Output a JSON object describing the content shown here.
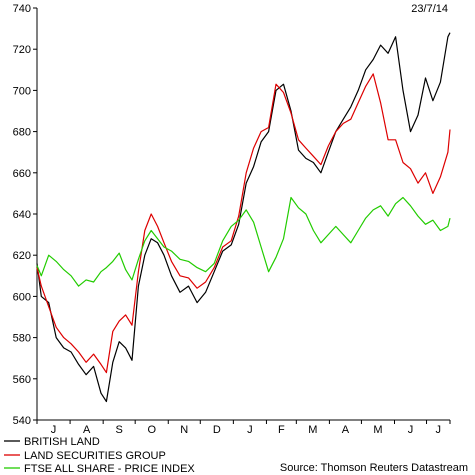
{
  "chart_data": {
    "type": "line",
    "date_label": "23/7/14",
    "source": "Source: Thomson Reuters Datastream",
    "ylim": [
      540,
      740
    ],
    "yticks": [
      540,
      560,
      580,
      600,
      620,
      640,
      660,
      680,
      700,
      720,
      740
    ],
    "xlim": [
      "2013-07-01",
      "2014-07-23"
    ],
    "month_labels": [
      "J",
      "A",
      "S",
      "O",
      "N",
      "D",
      "J",
      "F",
      "M",
      "A",
      "M",
      "J",
      "J"
    ],
    "grid": false,
    "legend_position": "bottom-left",
    "series": [
      {
        "name": "BRITISH LAND",
        "color": "#000000",
        "points": [
          [
            "2013-07-01",
            616
          ],
          [
            "2013-07-05",
            600
          ],
          [
            "2013-07-12",
            597
          ],
          [
            "2013-07-19",
            580
          ],
          [
            "2013-07-26",
            575
          ],
          [
            "2013-08-02",
            573
          ],
          [
            "2013-08-09",
            567
          ],
          [
            "2013-08-16",
            562
          ],
          [
            "2013-08-23",
            566
          ],
          [
            "2013-08-30",
            553
          ],
          [
            "2013-09-04",
            549
          ],
          [
            "2013-09-10",
            568
          ],
          [
            "2013-09-16",
            578
          ],
          [
            "2013-09-22",
            575
          ],
          [
            "2013-09-28",
            569
          ],
          [
            "2013-10-04",
            605
          ],
          [
            "2013-10-10",
            620
          ],
          [
            "2013-10-16",
            628
          ],
          [
            "2013-10-22",
            626
          ],
          [
            "2013-10-28",
            620
          ],
          [
            "2013-11-04",
            610
          ],
          [
            "2013-11-12",
            602
          ],
          [
            "2013-11-20",
            605
          ],
          [
            "2013-11-28",
            597
          ],
          [
            "2013-12-06",
            602
          ],
          [
            "2013-12-14",
            612
          ],
          [
            "2013-12-22",
            622
          ],
          [
            "2013-12-30",
            625
          ],
          [
            "2014-01-06",
            635
          ],
          [
            "2014-01-13",
            655
          ],
          [
            "2014-01-20",
            663
          ],
          [
            "2014-01-27",
            675
          ],
          [
            "2014-02-03",
            680
          ],
          [
            "2014-02-10",
            700
          ],
          [
            "2014-02-17",
            703
          ],
          [
            "2014-02-24",
            690
          ],
          [
            "2014-03-03",
            671
          ],
          [
            "2014-03-10",
            667
          ],
          [
            "2014-03-17",
            665
          ],
          [
            "2014-03-24",
            660
          ],
          [
            "2014-03-31",
            670
          ],
          [
            "2014-04-07",
            680
          ],
          [
            "2014-04-14",
            686
          ],
          [
            "2014-04-21",
            692
          ],
          [
            "2014-04-28",
            700
          ],
          [
            "2014-05-05",
            710
          ],
          [
            "2014-05-12",
            715
          ],
          [
            "2014-05-19",
            722
          ],
          [
            "2014-05-26",
            718
          ],
          [
            "2014-06-02",
            726
          ],
          [
            "2014-06-09",
            700
          ],
          [
            "2014-06-16",
            680
          ],
          [
            "2014-06-23",
            688
          ],
          [
            "2014-06-30",
            706
          ],
          [
            "2014-07-07",
            695
          ],
          [
            "2014-07-14",
            704
          ],
          [
            "2014-07-21",
            726
          ],
          [
            "2014-07-23",
            728
          ]
        ]
      },
      {
        "name": "LAND SECURITIES GROUP",
        "color": "#dd0000",
        "points": [
          [
            "2013-07-01",
            614
          ],
          [
            "2013-07-05",
            605
          ],
          [
            "2013-07-12",
            595
          ],
          [
            "2013-07-19",
            585
          ],
          [
            "2013-07-26",
            580
          ],
          [
            "2013-08-02",
            577
          ],
          [
            "2013-08-09",
            573
          ],
          [
            "2013-08-16",
            568
          ],
          [
            "2013-08-23",
            572
          ],
          [
            "2013-08-30",
            567
          ],
          [
            "2013-09-04",
            563
          ],
          [
            "2013-09-10",
            583
          ],
          [
            "2013-09-16",
            588
          ],
          [
            "2013-09-22",
            591
          ],
          [
            "2013-09-28",
            586
          ],
          [
            "2013-10-04",
            612
          ],
          [
            "2013-10-10",
            632
          ],
          [
            "2013-10-16",
            640
          ],
          [
            "2013-10-22",
            634
          ],
          [
            "2013-10-28",
            626
          ],
          [
            "2013-11-04",
            617
          ],
          [
            "2013-11-12",
            610
          ],
          [
            "2013-11-20",
            609
          ],
          [
            "2013-11-28",
            604
          ],
          [
            "2013-12-06",
            607
          ],
          [
            "2013-12-14",
            614
          ],
          [
            "2013-12-22",
            624
          ],
          [
            "2013-12-30",
            627
          ],
          [
            "2014-01-06",
            639
          ],
          [
            "2014-01-13",
            660
          ],
          [
            "2014-01-20",
            672
          ],
          [
            "2014-01-27",
            680
          ],
          [
            "2014-02-03",
            682
          ],
          [
            "2014-02-10",
            703
          ],
          [
            "2014-02-17",
            699
          ],
          [
            "2014-02-24",
            689
          ],
          [
            "2014-03-03",
            676
          ],
          [
            "2014-03-10",
            672
          ],
          [
            "2014-03-17",
            668
          ],
          [
            "2014-03-24",
            664
          ],
          [
            "2014-03-31",
            673
          ],
          [
            "2014-04-07",
            680
          ],
          [
            "2014-04-14",
            684
          ],
          [
            "2014-04-21",
            686
          ],
          [
            "2014-04-28",
            694
          ],
          [
            "2014-05-05",
            702
          ],
          [
            "2014-05-12",
            708
          ],
          [
            "2014-05-19",
            694
          ],
          [
            "2014-05-26",
            676
          ],
          [
            "2014-06-02",
            676
          ],
          [
            "2014-06-09",
            665
          ],
          [
            "2014-06-16",
            662
          ],
          [
            "2014-06-23",
            655
          ],
          [
            "2014-06-30",
            660
          ],
          [
            "2014-07-07",
            650
          ],
          [
            "2014-07-14",
            658
          ],
          [
            "2014-07-21",
            670
          ],
          [
            "2014-07-23",
            681
          ]
        ]
      },
      {
        "name": "FTSE ALL SHARE - PRICE INDEX",
        "color": "#22cc00",
        "points": [
          [
            "2013-07-01",
            615
          ],
          [
            "2013-07-05",
            610
          ],
          [
            "2013-07-12",
            620
          ],
          [
            "2013-07-19",
            617
          ],
          [
            "2013-07-26",
            613
          ],
          [
            "2013-08-02",
            610
          ],
          [
            "2013-08-09",
            605
          ],
          [
            "2013-08-16",
            608
          ],
          [
            "2013-08-23",
            607
          ],
          [
            "2013-08-30",
            612
          ],
          [
            "2013-09-04",
            614
          ],
          [
            "2013-09-10",
            617
          ],
          [
            "2013-09-16",
            621
          ],
          [
            "2013-09-22",
            613
          ],
          [
            "2013-09-28",
            608
          ],
          [
            "2013-10-04",
            618
          ],
          [
            "2013-10-10",
            627
          ],
          [
            "2013-10-16",
            632
          ],
          [
            "2013-10-22",
            628
          ],
          [
            "2013-10-28",
            624
          ],
          [
            "2013-11-04",
            622
          ],
          [
            "2013-11-12",
            618
          ],
          [
            "2013-11-20",
            617
          ],
          [
            "2013-11-28",
            614
          ],
          [
            "2013-12-06",
            612
          ],
          [
            "2013-12-14",
            616
          ],
          [
            "2013-12-22",
            627
          ],
          [
            "2013-12-30",
            634
          ],
          [
            "2014-01-06",
            637
          ],
          [
            "2014-01-13",
            642
          ],
          [
            "2014-01-20",
            636
          ],
          [
            "2014-01-27",
            624
          ],
          [
            "2014-02-03",
            612
          ],
          [
            "2014-02-10",
            619
          ],
          [
            "2014-02-17",
            628
          ],
          [
            "2014-02-24",
            648
          ],
          [
            "2014-03-03",
            643
          ],
          [
            "2014-03-10",
            640
          ],
          [
            "2014-03-17",
            632
          ],
          [
            "2014-03-24",
            626
          ],
          [
            "2014-03-31",
            630
          ],
          [
            "2014-04-07",
            634
          ],
          [
            "2014-04-14",
            630
          ],
          [
            "2014-04-21",
            626
          ],
          [
            "2014-04-28",
            632
          ],
          [
            "2014-05-05",
            638
          ],
          [
            "2014-05-12",
            642
          ],
          [
            "2014-05-19",
            644
          ],
          [
            "2014-05-26",
            639
          ],
          [
            "2014-06-02",
            645
          ],
          [
            "2014-06-09",
            648
          ],
          [
            "2014-06-16",
            644
          ],
          [
            "2014-06-23",
            639
          ],
          [
            "2014-06-30",
            635
          ],
          [
            "2014-07-07",
            637
          ],
          [
            "2014-07-14",
            632
          ],
          [
            "2014-07-21",
            634
          ],
          [
            "2014-07-23",
            638
          ]
        ]
      }
    ]
  }
}
